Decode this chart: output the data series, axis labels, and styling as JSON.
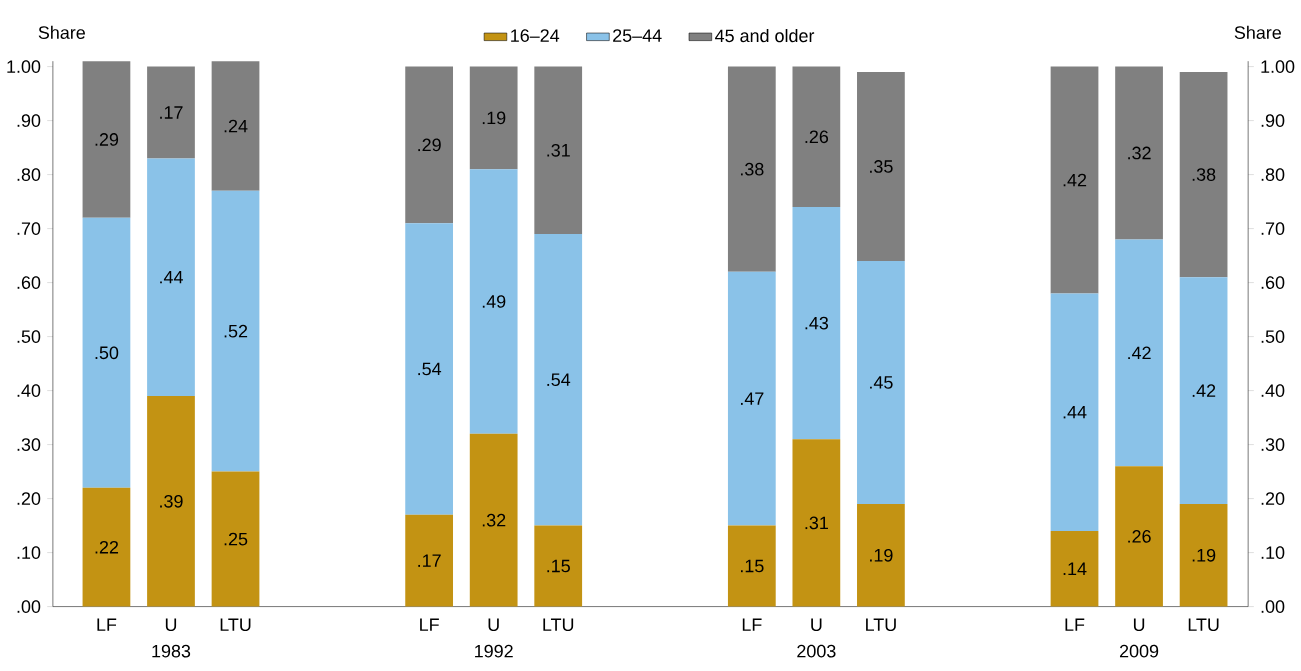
{
  "chart_data": {
    "type": "bar",
    "stacked": true,
    "ylabel": "Share",
    "y2label": "Share",
    "categories": [
      "LF",
      "U",
      "LTU",
      null,
      null,
      "LF",
      "U",
      "LTU",
      null,
      null,
      "LF",
      "U",
      "LTU",
      null,
      null,
      "LF",
      "U",
      "LTU"
    ],
    "annotations": [
      "1983",
      "1992",
      "2003",
      "2009"
    ],
    "series": [
      {
        "name": "16–24",
        "color": "#c39313",
        "values": [
          0.22,
          0.39,
          0.25,
          null,
          null,
          0.17,
          0.32,
          0.15,
          null,
          null,
          0.15,
          0.31,
          0.19,
          null,
          null,
          0.14,
          0.26,
          0.19
        ],
        "value_labels": [
          ".22",
          ".39",
          ".25",
          null,
          null,
          ".17",
          ".32",
          ".15",
          null,
          null,
          ".15",
          ".31",
          ".19",
          null,
          null,
          ".14",
          ".26",
          ".19"
        ]
      },
      {
        "name": "25–44",
        "color": "#8ac2e8",
        "values": [
          0.5,
          0.44,
          0.52,
          null,
          null,
          0.54,
          0.49,
          0.54,
          null,
          null,
          0.47,
          0.43,
          0.45,
          null,
          null,
          0.44,
          0.42,
          0.42
        ],
        "value_labels": [
          ".50",
          ".44",
          ".52",
          null,
          null,
          ".54",
          ".49",
          ".54",
          null,
          null,
          ".47",
          ".43",
          ".45",
          null,
          null,
          ".44",
          ".42",
          ".42"
        ]
      },
      {
        "name": "45 and older",
        "color": "#808080",
        "values": [
          0.29,
          0.17,
          0.24,
          null,
          null,
          0.29,
          0.19,
          0.31,
          null,
          null,
          0.38,
          0.26,
          0.35,
          null,
          null,
          0.42,
          0.32,
          0.38
        ],
        "value_labels": [
          ".29",
          ".17",
          ".24",
          null,
          null,
          ".29",
          ".19",
          ".31",
          null,
          null,
          ".38",
          ".26",
          ".35",
          null,
          null,
          ".42",
          ".32",
          ".38"
        ]
      }
    ],
    "ylim": [
      0,
      1.01
    ],
    "yticks": [
      {
        "value": 0,
        "label": ".00"
      },
      {
        "value": 0.1,
        "label": ".10"
      },
      {
        "value": 0.2,
        "label": ".20"
      },
      {
        "value": 0.3,
        "label": ".30"
      },
      {
        "value": 0.4,
        "label": ".40"
      },
      {
        "value": 0.5,
        "label": ".50"
      },
      {
        "value": 0.6,
        "label": ".60"
      },
      {
        "value": 0.7,
        "label": ".70"
      },
      {
        "value": 0.8,
        "label": ".80"
      },
      {
        "value": 0.9,
        "label": ".90"
      },
      {
        "value": 1.0,
        "label": "1.00"
      }
    ],
    "y2lim": [
      0,
      1.01
    ],
    "y2ticks": [
      {
        "value": 0,
        "label": ".00"
      },
      {
        "value": 0.1,
        "label": ".10"
      },
      {
        "value": 0.2,
        "label": ".20"
      },
      {
        "value": 0.3,
        "label": ".30"
      },
      {
        "value": 0.4,
        "label": ".40"
      },
      {
        "value": 0.5,
        "label": ".50"
      },
      {
        "value": 0.6,
        "label": ".60"
      },
      {
        "value": 0.7,
        "label": ".70"
      },
      {
        "value": 0.8,
        "label": ".80"
      },
      {
        "value": 0.9,
        "label": ".90"
      },
      {
        "value": 1.0,
        "label": "1.00"
      }
    ],
    "legend": "top",
    "grid": false
  }
}
